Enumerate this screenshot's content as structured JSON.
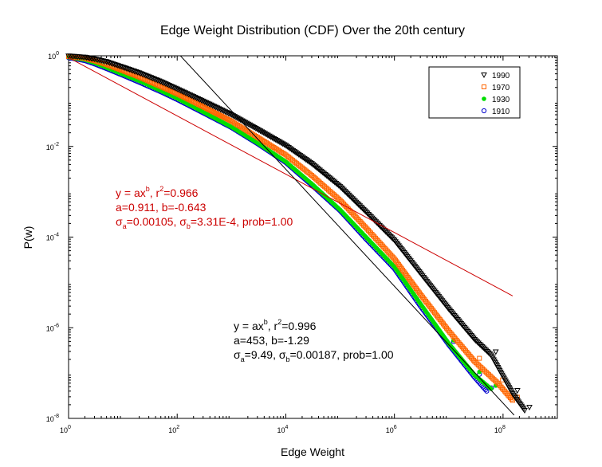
{
  "chart_data": {
    "type": "scatter",
    "title": "Edge Weight Distribution (CDF) Over the 20th century",
    "xlabel": "Edge Weight",
    "ylabel": "P(w)",
    "x_scale": "log",
    "y_scale": "log",
    "xlim": [
      1,
      1000000000
    ],
    "ylim": [
      1e-08,
      1
    ],
    "x_ticks": [
      {
        "base": "10",
        "exp": "0",
        "value": 1
      },
      {
        "base": "10",
        "exp": "2",
        "value": 100
      },
      {
        "base": "10",
        "exp": "4",
        "value": 10000
      },
      {
        "base": "10",
        "exp": "6",
        "value": 1000000
      },
      {
        "base": "10",
        "exp": "8",
        "value": 100000000
      }
    ],
    "y_ticks": [
      {
        "base": "10",
        "exp": "0",
        "value": 1
      },
      {
        "base": "10",
        "exp": "-2",
        "value": 0.01
      },
      {
        "base": "10",
        "exp": "-4",
        "value": 0.0001
      },
      {
        "base": "10",
        "exp": "-6",
        "value": 1e-06
      },
      {
        "base": "10",
        "exp": "-8",
        "value": 1e-08
      }
    ],
    "grid": false,
    "legend_position": "top-right",
    "series": [
      {
        "name": "1990",
        "marker": "triangle-down",
        "color": "#000000",
        "points": [
          [
            1,
            0.99
          ],
          [
            2,
            0.93
          ],
          [
            3,
            0.85
          ],
          [
            5,
            0.74
          ],
          [
            10,
            0.56
          ],
          [
            20,
            0.42
          ],
          [
            50,
            0.27
          ],
          [
            100,
            0.185
          ],
          [
            300,
            0.1
          ],
          [
            1000,
            0.05
          ],
          [
            3000,
            0.024
          ],
          [
            10000,
            0.0105
          ],
          [
            30000,
            0.0042
          ],
          [
            100000,
            0.0013
          ],
          [
            300000,
            0.00036
          ],
          [
            1000000,
            8.5e-05
          ],
          [
            3000000,
            1.6e-05
          ],
          [
            10000000,
            2.6e-06
          ],
          [
            30000000,
            5.5e-07
          ],
          [
            60000000,
            2.5e-07
          ],
          [
            150000000,
            3.5e-08
          ],
          [
            250000000,
            1.5e-08
          ]
        ]
      },
      {
        "name": "1970",
        "marker": "square",
        "color": "#ff6600",
        "points": [
          [
            1,
            0.96
          ],
          [
            2,
            0.88
          ],
          [
            3,
            0.78
          ],
          [
            5,
            0.64
          ],
          [
            10,
            0.47
          ],
          [
            20,
            0.34
          ],
          [
            50,
            0.21
          ],
          [
            100,
            0.145
          ],
          [
            300,
            0.075
          ],
          [
            1000,
            0.036
          ],
          [
            3000,
            0.016
          ],
          [
            10000,
            0.0065
          ],
          [
            30000,
            0.0023
          ],
          [
            100000,
            0.00065
          ],
          [
            300000,
            0.00016
          ],
          [
            1000000,
            3.3e-05
          ],
          [
            3000000,
            5.5e-06
          ],
          [
            10000000,
            8.5e-07
          ],
          [
            30000000,
            1.8e-07
          ],
          [
            80000000,
            6e-08
          ],
          [
            150000000,
            2.5e-08
          ]
        ]
      },
      {
        "name": "1930",
        "marker": "circle-filled",
        "color": "#00dd00",
        "points": [
          [
            1,
            0.93
          ],
          [
            2,
            0.82
          ],
          [
            3,
            0.7
          ],
          [
            5,
            0.55
          ],
          [
            10,
            0.39
          ],
          [
            20,
            0.28
          ],
          [
            50,
            0.17
          ],
          [
            100,
            0.115
          ],
          [
            300,
            0.058
          ],
          [
            1000,
            0.027
          ],
          [
            3000,
            0.012
          ],
          [
            10000,
            0.0046
          ],
          [
            30000,
            0.0015
          ],
          [
            100000,
            0.0004
          ],
          [
            300000,
            0.0001
          ],
          [
            1000000,
            2.2e-05
          ],
          [
            3000000,
            3.4e-06
          ],
          [
            10000000,
            4.5e-07
          ],
          [
            30000000,
            9e-08
          ],
          [
            60000000,
            4.5e-08
          ]
        ]
      },
      {
        "name": "1910",
        "marker": "circle-open",
        "color": "#0000cc",
        "points": [
          [
            1,
            0.91
          ],
          [
            2,
            0.78
          ],
          [
            3,
            0.66
          ],
          [
            5,
            0.52
          ],
          [
            10,
            0.37
          ],
          [
            20,
            0.26
          ],
          [
            50,
            0.16
          ],
          [
            100,
            0.108
          ],
          [
            300,
            0.055
          ],
          [
            1000,
            0.026
          ],
          [
            3000,
            0.0115
          ],
          [
            10000,
            0.0044
          ],
          [
            30000,
            0.0014
          ],
          [
            100000,
            0.00038
          ],
          [
            300000,
            9e-05
          ],
          [
            1000000,
            2e-05
          ],
          [
            3000000,
            3e-06
          ],
          [
            10000000,
            4.2e-07
          ],
          [
            30000000,
            8e-08
          ],
          [
            50000000,
            4e-08
          ]
        ]
      }
    ],
    "fit_lines": [
      {
        "name": "red-fit",
        "color": "#cc0000",
        "a": 0.911,
        "b": -0.643,
        "x_range": [
          1,
          150000000
        ]
      },
      {
        "name": "black-fit",
        "color": "#000000",
        "a": 453,
        "b": -1.29,
        "x_range": [
          7,
          160000000
        ]
      }
    ],
    "annotations": [
      {
        "name": "red-fit-annotation",
        "color": "#cc0000",
        "line1": {
          "main": "y = ax",
          "sup": "b",
          "rest": ", r",
          "sup2": "2",
          "rest2": "=0.966"
        },
        "line2": "a=0.911, b=-0.643",
        "line3": {
          "s1": "σ",
          "sub1": "a",
          "mid": "=0.00105, ",
          "s2": "σ",
          "sub2": "b",
          "rest": "=3.31E-4, prob=1.00"
        }
      },
      {
        "name": "black-fit-annotation",
        "color": "#000000",
        "line1": {
          "main": "y = ax",
          "sup": "b",
          "rest": ", r",
          "sup2": "2",
          "rest2": "=0.996"
        },
        "line2": "a=453, b=-1.29",
        "line3": {
          "s1": "σ",
          "sub1": "a",
          "mid": "=9.49, ",
          "s2": "σ",
          "sub2": "b",
          "rest": "=0.00187, prob=1.00"
        }
      }
    ]
  }
}
